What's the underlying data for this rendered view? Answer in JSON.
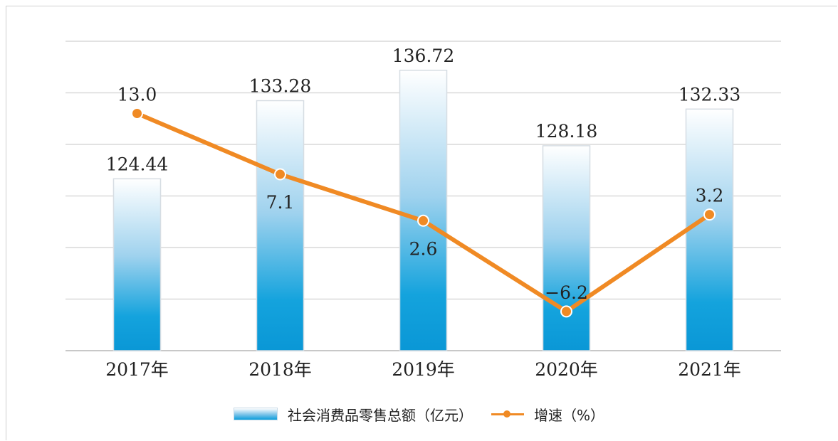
{
  "chart_data": {
    "type": "bar",
    "categories": [
      "2017年",
      "2018年",
      "2019年",
      "2020年",
      "2021年"
    ],
    "series": [
      {
        "name": "社会消费品零售总额（亿元）",
        "type": "bar",
        "values": [
          124.44,
          133.28,
          136.72,
          128.18,
          132.33
        ],
        "labels": [
          "124.44",
          "133.28",
          "136.72",
          "128.18",
          "132.33"
        ]
      },
      {
        "name": "增速（%）",
        "type": "line",
        "values": [
          13.0,
          7.1,
          2.6,
          -6.2,
          3.2
        ],
        "labels": [
          "13.0",
          "7.1",
          "2.6",
          "−6.2",
          "3.2"
        ]
      }
    ],
    "bar_axis_range": [
      105,
      140
    ],
    "line_axis_range": [
      -10,
      20
    ],
    "grid": true,
    "legend_position": "bottom",
    "colors": {
      "bar_top": "#ffffff",
      "bar_bottom": "#0a9ddc",
      "line": "#f08a24",
      "grid": "#d9d9d9"
    }
  }
}
